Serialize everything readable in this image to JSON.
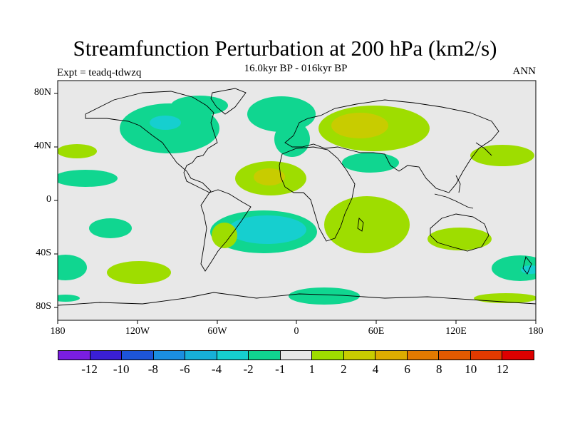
{
  "title": "Streamfunction Perturbation at 200 hPa (km2/s)",
  "subtitle": "16.0kyr BP - 016kyr BP",
  "experiment": "Expt = teadq-tdwzq",
  "season": "ANN",
  "lat_ticks": [
    "80N",
    "40N",
    "0",
    "40S",
    "80S"
  ],
  "lon_ticks": [
    "180",
    "120W",
    "60W",
    "0",
    "60E",
    "120E",
    "180"
  ],
  "colorbar": {
    "colors": [
      "#7a1ee0",
      "#3a1fd6",
      "#1d55d8",
      "#1b8ee0",
      "#17b0d8",
      "#16cfcf",
      "#10d690",
      "#e8e8e8",
      "#9edd00",
      "#c8cc00",
      "#dcac00",
      "#e47a00",
      "#e45a00",
      "#e13a00",
      "#dd0000"
    ],
    "labels": [
      "-12",
      "-10",
      "-8",
      "-6",
      "-4",
      "-2",
      "-1",
      "1",
      "2",
      "4",
      "6",
      "8",
      "10",
      "12"
    ]
  }
}
